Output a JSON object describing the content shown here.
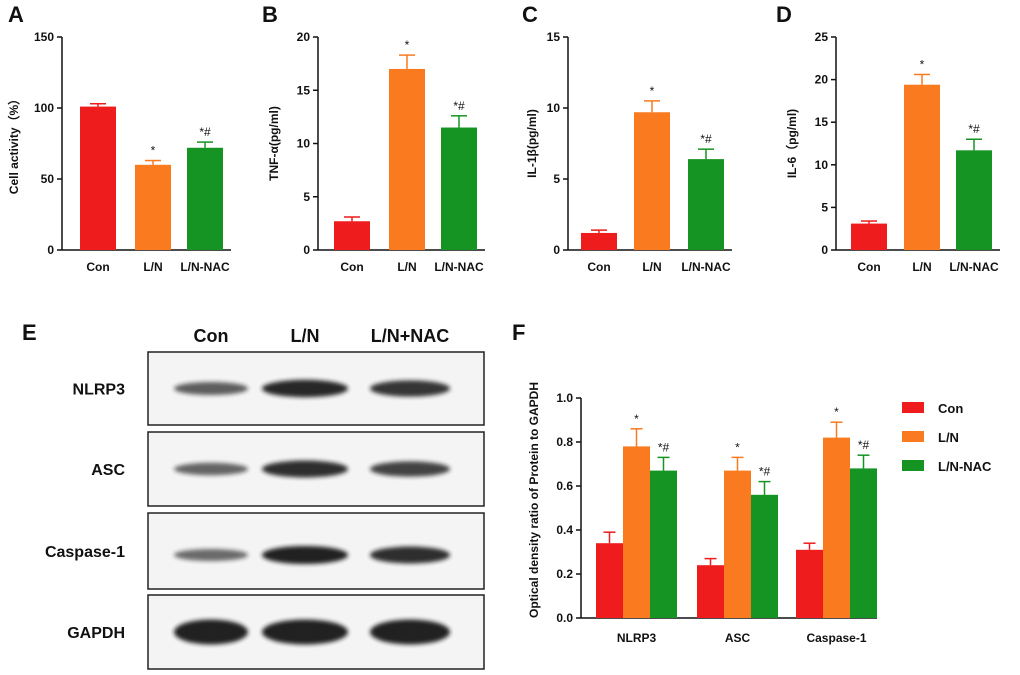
{
  "colors": {
    "con": "#ee1c1c",
    "ln": "#f97a1f",
    "nac": "#169423"
  },
  "chart_data": [
    {
      "panel": "A",
      "type": "bar",
      "categories": [
        "Con",
        "L/N",
        "L/N-NAC"
      ],
      "values": [
        101,
        60,
        72
      ],
      "errors": [
        2,
        3,
        4
      ],
      "sig": [
        "",
        "*",
        "*#"
      ],
      "ylabel": "Cell activity（%）",
      "ylim": [
        0,
        150
      ],
      "yticks": [
        0,
        50,
        100,
        150
      ],
      "ytick_labels": [
        "0",
        "50",
        "100",
        "150"
      ]
    },
    {
      "panel": "B",
      "type": "bar",
      "categories": [
        "Con",
        "L/N",
        "L/N-NAC"
      ],
      "values": [
        2.7,
        17.0,
        11.5
      ],
      "errors": [
        0.4,
        1.3,
        1.1
      ],
      "sig": [
        "",
        "*",
        "*#"
      ],
      "ylabel": "TNF-α(pg/ml)",
      "ylim": [
        0,
        20
      ],
      "yticks": [
        0,
        5,
        10,
        15,
        20
      ],
      "ytick_labels": [
        "0",
        "5",
        "10",
        "15",
        "20"
      ]
    },
    {
      "panel": "C",
      "type": "bar",
      "categories": [
        "Con",
        "L/N",
        "L/N-NAC"
      ],
      "values": [
        1.2,
        9.7,
        6.4
      ],
      "errors": [
        0.2,
        0.8,
        0.7
      ],
      "sig": [
        "",
        "*",
        "*#"
      ],
      "ylabel": "IL-1β(pg/ml)",
      "ylim": [
        0,
        15
      ],
      "yticks": [
        0,
        5,
        10,
        15
      ],
      "ytick_labels": [
        "0",
        "5",
        "10",
        "15"
      ]
    },
    {
      "panel": "D",
      "type": "bar",
      "categories": [
        "Con",
        "L/N",
        "L/N-NAC"
      ],
      "values": [
        3.1,
        19.4,
        11.7
      ],
      "errors": [
        0.3,
        1.2,
        1.3
      ],
      "sig": [
        "",
        "*",
        "*#"
      ],
      "ylabel": "IL-6（pg/ml)",
      "ylim": [
        0,
        25
      ],
      "yticks": [
        0,
        5,
        10,
        15,
        20,
        25
      ],
      "ytick_labels": [
        "0",
        "5",
        "10",
        "15",
        "20",
        "25"
      ]
    },
    {
      "panel": "F",
      "type": "bar",
      "categories": [
        "NLRP3",
        "ASC",
        "Caspase-1"
      ],
      "series": [
        {
          "name": "Con",
          "values": [
            0.34,
            0.24,
            0.31
          ],
          "errors": [
            0.05,
            0.03,
            0.03
          ],
          "sig": [
            "",
            "",
            ""
          ]
        },
        {
          "name": "L/N",
          "values": [
            0.78,
            0.67,
            0.82
          ],
          "errors": [
            0.08,
            0.06,
            0.07
          ],
          "sig": [
            "*",
            "*",
            "*"
          ]
        },
        {
          "name": "L/N-NAC",
          "values": [
            0.67,
            0.56,
            0.68
          ],
          "errors": [
            0.06,
            0.06,
            0.06
          ],
          "sig": [
            "*#",
            "*#",
            "*#"
          ]
        }
      ],
      "ylabel": "Optical density ratio of Protein to GAPDH",
      "ylim": [
        0,
        1.0
      ],
      "yticks": [
        0,
        0.2,
        0.4,
        0.6,
        0.8,
        1.0
      ],
      "ytick_labels": [
        "0.0",
        "0.2",
        "0.4",
        "0.6",
        "0.8",
        "1.0"
      ],
      "legend": "right"
    }
  ],
  "western_blot": {
    "panel": "E",
    "lane_labels": [
      "Con",
      "L/N",
      "L/N+NAC"
    ],
    "rows": [
      {
        "name": "NLRP3",
        "intensity": [
          0.55,
          0.95,
          0.85
        ]
      },
      {
        "name": "ASC",
        "intensity": [
          0.5,
          0.9,
          0.75
        ]
      },
      {
        "name": "Caspase-1",
        "intensity": [
          0.45,
          1.0,
          0.9
        ]
      },
      {
        "name": "GAPDH",
        "intensity": [
          1.0,
          1.0,
          1.0
        ]
      }
    ]
  }
}
